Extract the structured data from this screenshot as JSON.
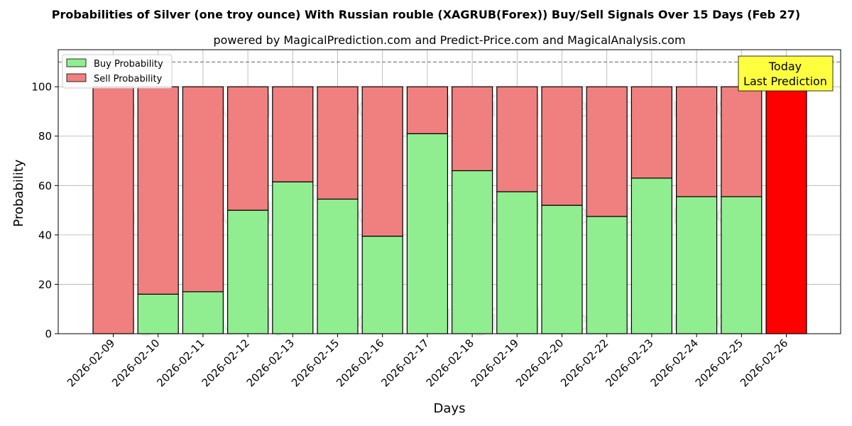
{
  "chart_data": {
    "type": "bar",
    "stacked": true,
    "title": "Probabilities of Silver (one troy ounce) With Russian rouble (XAGRUB(Forex)) Buy/Sell Signals Over 15 Days (Feb 27)",
    "subtitle": "powered by MagicalPrediction.com and Predict-Price.com and MagicalAnalysis.com",
    "xlabel": "Days",
    "ylabel": "Probability",
    "ylim": [
      0,
      115
    ],
    "yticks": [
      0,
      20,
      40,
      60,
      80,
      100
    ],
    "grid": true,
    "legend_position": "top-left",
    "categories": [
      "2026-02-09",
      "2026-02-10",
      "2026-02-11",
      "2026-02-12",
      "2026-02-13",
      "2026-02-15",
      "2026-02-16",
      "2026-02-17",
      "2026-02-18",
      "2026-02-19",
      "2026-02-20",
      "2026-02-22",
      "2026-02-23",
      "2026-02-24",
      "2026-02-25",
      "2026-02-26"
    ],
    "series": [
      {
        "name": "Buy Probability",
        "color": "#90ee90",
        "values": [
          0,
          16,
          17,
          50,
          61.5,
          54.5,
          39.5,
          81,
          66,
          57.5,
          52,
          47.5,
          63,
          55.5,
          55.5,
          0
        ]
      },
      {
        "name": "Sell Probability",
        "color": "#f08080",
        "values": [
          100,
          84,
          83,
          50,
          38.5,
          45.5,
          60.5,
          19,
          34,
          42.5,
          48,
          52.5,
          37,
          44.5,
          44.5,
          100
        ]
      }
    ],
    "highlight": {
      "category": "2026-02-26",
      "color": "#ff0000"
    },
    "reference_line": {
      "y": 110,
      "style": "dashed",
      "color": "#808080"
    },
    "annotation": {
      "lines": [
        "Today",
        "Last Prediction"
      ],
      "background": "#ffff40"
    },
    "watermarks": [
      "MagicalAnalysis.com",
      "MagicalPrediction.com"
    ]
  }
}
